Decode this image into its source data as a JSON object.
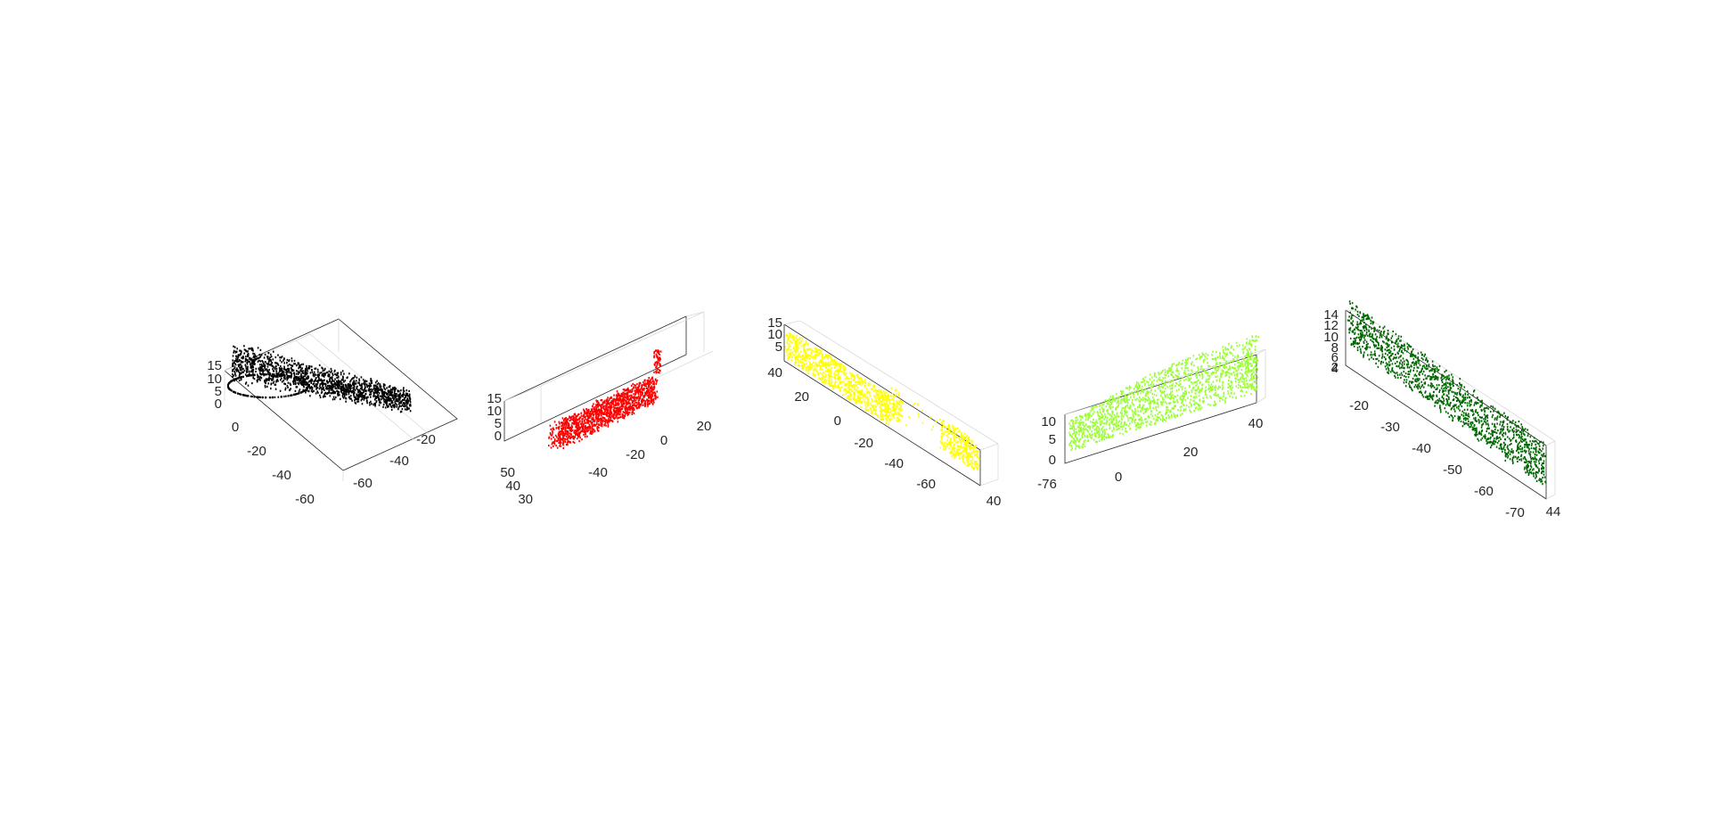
{
  "figure": {
    "background": "#ffffff"
  },
  "chart_data": [
    {
      "type": "scatter",
      "subtype": "3d-point-cloud",
      "color": "#000000",
      "x_ticks": [
        "0",
        "-20",
        "-40",
        "-60"
      ],
      "y_ticks": [
        "-60",
        "-40",
        "-20"
      ],
      "z_ticks": [
        "15",
        "10",
        "5",
        "0"
      ],
      "xlim": [
        -75,
        8
      ],
      "ylim": [
        -70,
        -15
      ],
      "zlim": [
        0,
        15
      ],
      "grid": true
    },
    {
      "type": "scatter",
      "subtype": "3d-point-cloud",
      "color": "#ff0000",
      "x_ticks": [
        "50",
        "40",
        "30"
      ],
      "y_ticks": [
        "-40",
        "-20",
        "0",
        "20"
      ],
      "z_ticks": [
        "15",
        "10",
        "5",
        "0"
      ],
      "xlim": [
        28,
        55
      ],
      "ylim": [
        -55,
        28
      ],
      "zlim": [
        0,
        15
      ],
      "grid": true
    },
    {
      "type": "scatter",
      "subtype": "3d-point-cloud",
      "color": "#ffff00",
      "x_ticks": [
        "40",
        "20",
        "0",
        "-20",
        "-40",
        "-60"
      ],
      "y_ticks": [
        "40"
      ],
      "z_ticks": [
        "15",
        "10",
        "5"
      ],
      "xlim": [
        -75,
        45
      ],
      "ylim": [
        38,
        42
      ],
      "zlim": [
        0,
        15
      ],
      "grid": true
    },
    {
      "type": "scatter",
      "subtype": "3d-point-cloud",
      "color": "#99ff33",
      "x_ticks": [
        "0",
        "20",
        "40"
      ],
      "y_ticks": [
        "-76"
      ],
      "z_ticks": [
        "10",
        "5",
        "0"
      ],
      "xlim": [
        -12,
        48
      ],
      "ylim": [
        -77,
        -75
      ],
      "zlim": [
        0,
        14
      ],
      "grid": true
    },
    {
      "type": "scatter",
      "subtype": "3d-point-cloud",
      "color": "#006600",
      "x_ticks": [
        "-20",
        "-30",
        "-40",
        "-50",
        "-60",
        "-70"
      ],
      "y_ticks": [
        "44"
      ],
      "z_ticks": [
        "14",
        "12",
        "10",
        "8",
        "6",
        "4",
        "2"
      ],
      "xlim": [
        -75,
        -15
      ],
      "ylim": [
        43,
        45
      ],
      "zlim": [
        0,
        14
      ],
      "grid": true
    }
  ]
}
